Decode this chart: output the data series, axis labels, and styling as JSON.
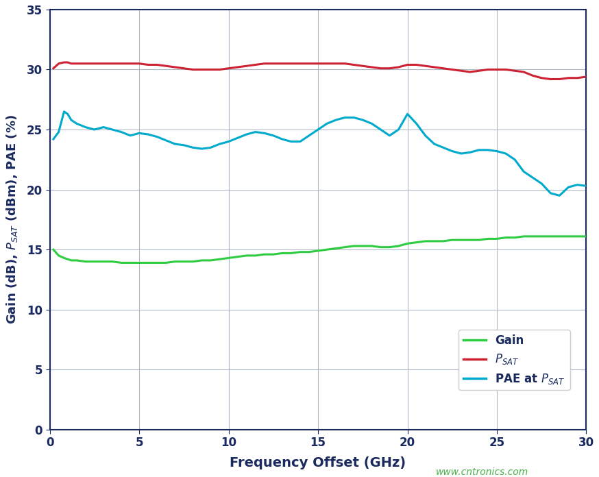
{
  "title": "",
  "xlabel": "Frequency Offset (GHz)",
  "ylabel": "Gain (dB), PₛAT (dBm), PAE (%)",
  "xlim": [
    0,
    30
  ],
  "ylim": [
    0,
    35
  ],
  "xticks": [
    0,
    5,
    10,
    15,
    20,
    25,
    30
  ],
  "yticks": [
    0,
    5,
    10,
    15,
    20,
    25,
    30,
    35
  ],
  "background_color": "#ffffff",
  "grid_color": "#b0b8c8",
  "axis_color": "#1a2a5e",
  "label_color": "#1a2a5e",
  "website_text": "www.cntronics.com",
  "website_color": "#4ab04a",
  "gain_color": "#2ecc40",
  "psat_color": "#cc2233",
  "pae_color": "#00aacc",
  "line_width": 2.2,
  "gain_x": [
    0.2,
    0.5,
    0.8,
    1.0,
    1.2,
    1.5,
    2.0,
    2.5,
    3.0,
    3.5,
    4.0,
    4.5,
    5.0,
    5.5,
    6.0,
    6.5,
    7.0,
    7.5,
    8.0,
    8.5,
    9.0,
    9.5,
    10.0,
    10.5,
    11.0,
    11.5,
    12.0,
    12.5,
    13.0,
    13.5,
    14.0,
    14.5,
    15.0,
    15.5,
    16.0,
    16.5,
    17.0,
    17.5,
    18.0,
    18.5,
    19.0,
    19.5,
    20.0,
    20.5,
    21.0,
    21.5,
    22.0,
    22.5,
    23.0,
    23.5,
    24.0,
    24.5,
    25.0,
    25.5,
    26.0,
    26.5,
    27.0,
    27.5,
    28.0,
    28.5,
    29.0,
    29.5,
    30.0
  ],
  "gain_y": [
    15.0,
    14.5,
    14.3,
    14.2,
    14.1,
    14.1,
    14.0,
    14.0,
    14.0,
    14.0,
    13.9,
    13.9,
    13.9,
    13.9,
    13.9,
    13.9,
    14.0,
    14.0,
    14.0,
    14.1,
    14.1,
    14.2,
    14.3,
    14.4,
    14.5,
    14.5,
    14.6,
    14.6,
    14.7,
    14.7,
    14.8,
    14.8,
    14.9,
    15.0,
    15.1,
    15.2,
    15.3,
    15.3,
    15.3,
    15.2,
    15.2,
    15.3,
    15.5,
    15.6,
    15.7,
    15.7,
    15.7,
    15.8,
    15.8,
    15.8,
    15.8,
    15.9,
    15.9,
    16.0,
    16.0,
    16.1,
    16.1,
    16.1,
    16.1,
    16.1,
    16.1,
    16.1,
    16.1
  ],
  "psat_x": [
    0.2,
    0.5,
    0.8,
    1.0,
    1.2,
    1.5,
    2.0,
    2.5,
    3.0,
    3.5,
    4.0,
    4.5,
    5.0,
    5.5,
    6.0,
    6.5,
    7.0,
    7.5,
    8.0,
    8.5,
    9.0,
    9.5,
    10.0,
    10.5,
    11.0,
    11.5,
    12.0,
    12.5,
    13.0,
    13.5,
    14.0,
    14.5,
    15.0,
    15.5,
    16.0,
    16.5,
    17.0,
    17.5,
    18.0,
    18.5,
    19.0,
    19.5,
    20.0,
    20.5,
    21.0,
    21.5,
    22.0,
    22.5,
    23.0,
    23.5,
    24.0,
    24.5,
    25.0,
    25.5,
    26.0,
    26.5,
    27.0,
    27.5,
    28.0,
    28.5,
    29.0,
    29.5,
    30.0
  ],
  "psat_y": [
    30.1,
    30.5,
    30.6,
    30.6,
    30.5,
    30.5,
    30.5,
    30.5,
    30.5,
    30.5,
    30.5,
    30.5,
    30.5,
    30.4,
    30.4,
    30.3,
    30.2,
    30.1,
    30.0,
    30.0,
    30.0,
    30.0,
    30.1,
    30.2,
    30.3,
    30.4,
    30.5,
    30.5,
    30.5,
    30.5,
    30.5,
    30.5,
    30.5,
    30.5,
    30.5,
    30.5,
    30.4,
    30.3,
    30.2,
    30.1,
    30.1,
    30.2,
    30.4,
    30.4,
    30.3,
    30.2,
    30.1,
    30.0,
    29.9,
    29.8,
    29.9,
    30.0,
    30.0,
    30.0,
    29.9,
    29.8,
    29.5,
    29.3,
    29.2,
    29.2,
    29.3,
    29.3,
    29.4
  ],
  "pae_x": [
    0.2,
    0.5,
    0.8,
    1.0,
    1.2,
    1.5,
    2.0,
    2.5,
    3.0,
    3.5,
    4.0,
    4.5,
    5.0,
    5.5,
    6.0,
    6.5,
    7.0,
    7.5,
    8.0,
    8.5,
    9.0,
    9.5,
    10.0,
    10.5,
    11.0,
    11.5,
    12.0,
    12.5,
    13.0,
    13.5,
    14.0,
    14.5,
    15.0,
    15.5,
    16.0,
    16.5,
    17.0,
    17.5,
    18.0,
    18.5,
    19.0,
    19.5,
    20.0,
    20.5,
    21.0,
    21.5,
    22.0,
    22.5,
    23.0,
    23.5,
    24.0,
    24.5,
    25.0,
    25.5,
    26.0,
    26.5,
    27.0,
    27.5,
    28.0,
    28.5,
    29.0,
    29.5,
    30.0
  ],
  "pae_y": [
    24.2,
    24.8,
    26.5,
    26.3,
    25.8,
    25.5,
    25.2,
    25.0,
    25.2,
    25.0,
    24.8,
    24.5,
    24.7,
    24.6,
    24.4,
    24.1,
    23.8,
    23.7,
    23.5,
    23.4,
    23.5,
    23.8,
    24.0,
    24.3,
    24.6,
    24.8,
    24.7,
    24.5,
    24.2,
    24.0,
    24.0,
    24.5,
    25.0,
    25.5,
    25.8,
    26.0,
    26.0,
    25.8,
    25.5,
    25.0,
    24.5,
    25.0,
    26.3,
    25.5,
    24.5,
    23.8,
    23.5,
    23.2,
    23.0,
    23.1,
    23.3,
    23.3,
    23.2,
    23.0,
    22.5,
    21.5,
    21.0,
    20.5,
    19.7,
    19.5,
    20.2,
    20.4,
    20.3
  ]
}
